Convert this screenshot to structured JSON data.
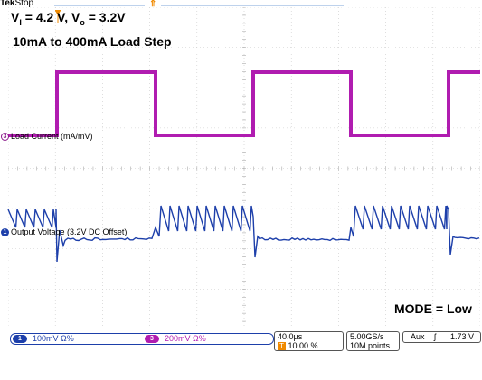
{
  "header": {
    "brand": "Tek",
    "state": "Stop"
  },
  "annotations": {
    "vin_text": "V",
    "vin_sub": "I",
    "vin_rest": " = 4.2 V, V",
    "vo_sub": "o",
    "vo_rest": " = 3.2V",
    "load_step": "10mA to 400mA Load Step",
    "mode": "MODE = Low"
  },
  "channels": {
    "ch3": {
      "marker": "3",
      "label": "Load Current (mA/mV)",
      "color": "#b01cb0"
    },
    "ch1": {
      "marker": "1",
      "label": "Output Voltage (3.2V DC Offset)",
      "color": "#1d3faa"
    }
  },
  "status_bar": {
    "ch1_tag": "1",
    "ch1_scale": "100mV",
    "ch1_coupling": "Ω%",
    "ch3_tag": "3",
    "ch3_scale": "200mV",
    "ch3_coupling": "Ω%",
    "timebase": "40.0µs",
    "trigger_pos_tag": "T",
    "trigger_pos": "10.00 %",
    "sample_rate": "5.00GS/s",
    "record_length": "10M points",
    "trigger_source": "Aux",
    "trigger_slope": "ʃ",
    "trigger_level": "1.73 V"
  },
  "colors": {
    "grid": "#c8c8c8",
    "ch3": "#b01cb0",
    "ch1": "#1d3faa",
    "trigger": "#f08a00",
    "bar": "#7ea6d8"
  }
}
